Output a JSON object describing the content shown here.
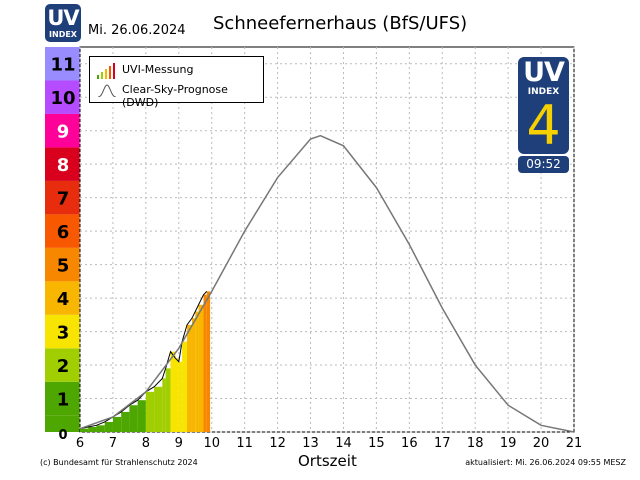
{
  "header": {
    "logo_uv": "UV",
    "logo_index": "INDEX",
    "date": "Mi. 26.06.2024",
    "title": "Schneefernerhaus (BfS/UFS)"
  },
  "badge": {
    "uv": "UV",
    "index": "INDEX",
    "value": "4",
    "time": "09:52",
    "background": "#1f3f7a",
    "value_color": "#f7d000"
  },
  "legend": {
    "measurement": "UVI-Messung",
    "forecast": "Clear-Sky-Prognose (DWD)"
  },
  "footer": {
    "copyright": "(c) Bundesamt für Strahlenschutz 2024",
    "updated": "aktualisiert: Mi. 26.06.2024  09:55  MESZ"
  },
  "chart_data": {
    "type": "bar",
    "title": "Schneefernerhaus (BfS/UFS)",
    "xlabel": "Ortszeit",
    "ylabel": "",
    "xlim": [
      5,
      21
    ],
    "ylim": [
      0,
      11.5
    ],
    "x_ticks": [
      6,
      7,
      8,
      9,
      10,
      11,
      12,
      13,
      14,
      15,
      16,
      17,
      18,
      19,
      20,
      21
    ],
    "y_ticks": [
      0,
      1,
      2,
      3,
      4,
      5,
      6,
      7,
      8,
      9,
      10,
      11
    ],
    "grid": true,
    "legend_position": "top-left",
    "uv_scale_colors": [
      "#4ea600",
      "#4ea600",
      "#a0ce00",
      "#f7e400",
      "#f8b600",
      "#f88700",
      "#f85900",
      "#e82c0e",
      "#d8001d",
      "#ff0099",
      "#b54cff",
      "#998cff"
    ],
    "series": [
      {
        "name": "UVI-Messung",
        "type": "bar",
        "x": [
          6.0,
          6.25,
          6.5,
          6.75,
          7.0,
          7.25,
          7.5,
          7.75,
          8.0,
          8.25,
          8.5,
          8.6,
          8.75,
          8.9,
          9.0,
          9.1,
          9.25,
          9.4,
          9.5,
          9.6,
          9.75,
          9.85
        ],
        "values": [
          0.1,
          0.15,
          0.2,
          0.3,
          0.45,
          0.6,
          0.8,
          0.95,
          1.2,
          1.35,
          1.6,
          1.9,
          2.4,
          2.2,
          2.1,
          2.7,
          3.2,
          3.4,
          3.6,
          3.8,
          4.1,
          4.2
        ]
      },
      {
        "name": "Clear-Sky-Prognose (DWD)",
        "type": "line",
        "x": [
          6,
          7,
          8,
          9,
          10,
          11,
          12,
          13,
          13.3,
          14,
          15,
          16,
          17,
          18,
          19,
          20,
          21
        ],
        "values": [
          0.1,
          0.45,
          1.2,
          2.5,
          4.2,
          6.0,
          7.6,
          8.75,
          8.85,
          8.55,
          7.3,
          5.6,
          3.7,
          2.0,
          0.8,
          0.2,
          0.0
        ]
      }
    ]
  }
}
